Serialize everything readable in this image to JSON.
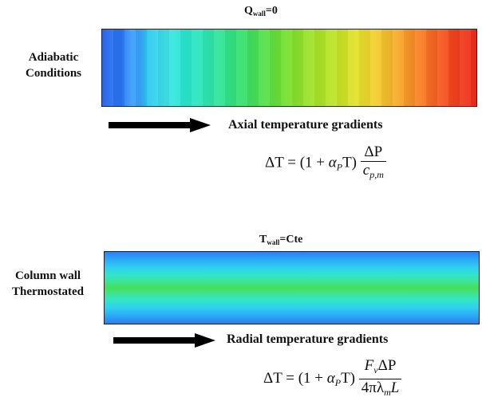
{
  "top_section": {
    "condition_label_line1": "Adiabatic",
    "condition_label_line2": "Conditions",
    "wall_symbol": "Q",
    "wall_subscript": "wall",
    "wall_value": "=0",
    "gradient_caption": "Axial temperature gradients",
    "equation": {
      "lhs": "ΔT = (1 + ",
      "alpha": "α",
      "alpha_sub": "P",
      "after_alpha": "T)",
      "numerator": "ΔP",
      "denominator_symbol": "c",
      "denominator_sub": "p,m"
    }
  },
  "bottom_section": {
    "condition_label_line1": "Column wall",
    "condition_label_line2": "Thermostated",
    "wall_symbol": "T",
    "wall_subscript": "wall",
    "wall_value": "=Cte",
    "gradient_caption": "Radial temperature gradients",
    "equation": {
      "lhs": "ΔT = (1 + ",
      "alpha": "α",
      "alpha_sub": "P",
      "after_alpha": "T)",
      "numerator_F": "F",
      "numerator_F_sub": "v",
      "numerator_rest": "ΔP",
      "denominator_pre": "4πλ",
      "denominator_sub": "m",
      "denominator_post": "L"
    }
  },
  "colors": {
    "cold": "#1e5ae6",
    "mid": "#53e04a",
    "hot": "#ee2a1a",
    "arrow": "#000000"
  }
}
